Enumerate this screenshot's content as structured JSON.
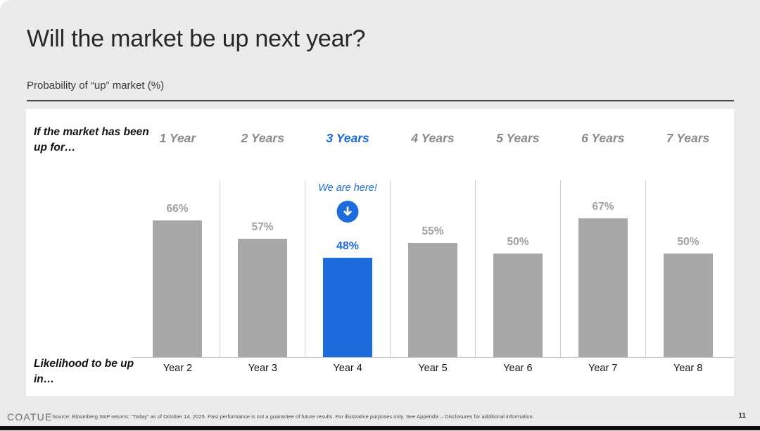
{
  "slide": {
    "title": "Will the market be up next year?",
    "subtitle": "Probability of “up” market (%)",
    "logo": "COATUE",
    "source": "Source: Bloomberg S&P returns; “Today” as of October 14, 2025. Past performance is not a guarantee of future results.  For illustrative purposes only. See Appendix – Disclosures for additional information.",
    "page_number": "11"
  },
  "chart_data": {
    "type": "bar",
    "title": "Will the market be up next year?",
    "ylabel": "Probability of “up” market (%)",
    "row_label_top": "If the market has been up for…",
    "row_label_bottom": "Likelihood to be up in…",
    "categories": [
      "1 Year",
      "2 Years",
      "3 Years",
      "4 Years",
      "5 Years",
      "6 Years",
      "7 Years"
    ],
    "x_labels": [
      "Year 2",
      "Year 3",
      "Year 4",
      "Year 5",
      "Year 6",
      "Year 7",
      "Year 8"
    ],
    "values": [
      66,
      57,
      48,
      55,
      50,
      67,
      50
    ],
    "value_labels": [
      "66%",
      "57%",
      "48%",
      "55%",
      "50%",
      "67%",
      "50%"
    ],
    "highlight_index": 2,
    "highlight_annotation": "We are here!",
    "highlight_icon": "down-arrow-circle-icon",
    "ylim": [
      0,
      100
    ],
    "grid": "column-dividers-only",
    "legend": "none",
    "colors": {
      "bar": "#a8a8a8",
      "highlight": "#1e6bdd",
      "value_label": "#a0a0a0",
      "header": "#8a8a8e"
    }
  }
}
